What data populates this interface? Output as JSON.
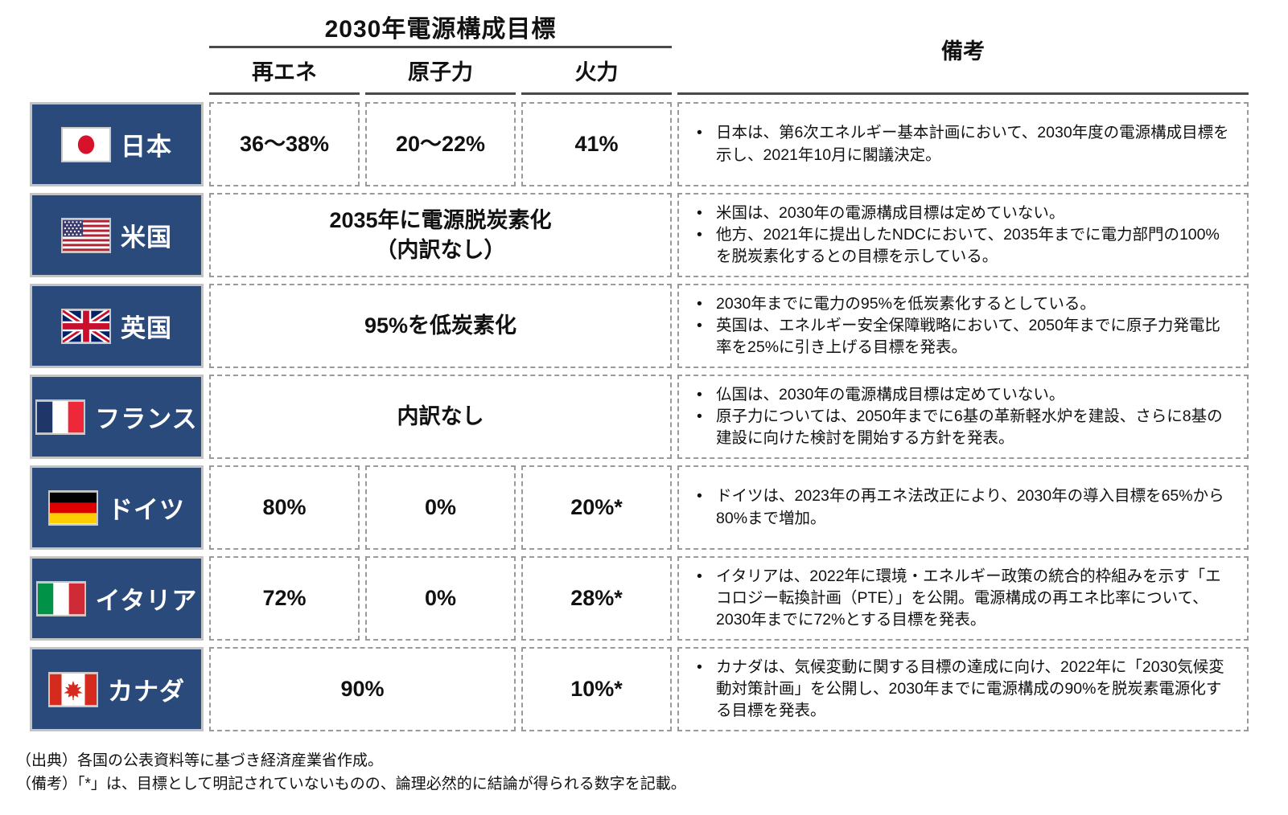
{
  "colors": {
    "country_box": "#2A4A7C",
    "country_box_border": "#C4C4C4",
    "cell_dashed_border": "#9A9A9A",
    "header_underline": "#4A4A4A",
    "country_text": "#FFFFFF",
    "body_text": "#111111"
  },
  "header": {
    "title": "2030年電源構成目標",
    "columns": [
      "再エネ",
      "原子力",
      "火力"
    ],
    "remarks": "備考"
  },
  "rows": [
    {
      "id": "japan",
      "country": "日本",
      "flag": "jp",
      "cells": [
        {
          "span": 1,
          "text": "36〜38%"
        },
        {
          "span": 1,
          "text": "20〜22%"
        },
        {
          "span": 1,
          "text": "41%"
        }
      ],
      "remarks": [
        "日本は、第6次エネルギー基本計画において、2030年度の電源構成目標を示し、2021年10月に閣議決定。"
      ]
    },
    {
      "id": "usa",
      "country": "米国",
      "flag": "us",
      "cells": [
        {
          "span": 3,
          "text": "2035年に電源脱炭素化\n（内訳なし）"
        }
      ],
      "remarks": [
        "米国は、2030年の電源構成目標は定めていない。",
        "他方、2021年に提出したNDCにおいて、2035年までに電力部門の100%を脱炭素化するとの目標を示している。"
      ]
    },
    {
      "id": "uk",
      "country": "英国",
      "flag": "uk",
      "cells": [
        {
          "span": 3,
          "text": "95%を低炭素化"
        }
      ],
      "remarks": [
        "2030年までに電力の95%を低炭素化するとしている。",
        "英国は、エネルギー安全保障戦略において、2050年までに原子力発電比率を25%に引き上げる目標を発表。"
      ]
    },
    {
      "id": "france",
      "country": "フランス",
      "flag": "fr",
      "cells": [
        {
          "span": 3,
          "text": "内訳なし"
        }
      ],
      "remarks": [
        "仏国は、2030年の電源構成目標は定めていない。",
        "原子力については、2050年までに6基の革新軽水炉を建設、さらに8基の建設に向けた検討を開始する方針を発表。"
      ]
    },
    {
      "id": "germany",
      "country": "ドイツ",
      "flag": "de",
      "cells": [
        {
          "span": 1,
          "text": "80%"
        },
        {
          "span": 1,
          "text": "0%"
        },
        {
          "span": 1,
          "text": "20%*"
        }
      ],
      "remarks": [
        "ドイツは、2023年の再エネ法改正により、2030年の導入目標を65%から80%まで増加。"
      ]
    },
    {
      "id": "italy",
      "country": "イタリア",
      "flag": "it",
      "cells": [
        {
          "span": 1,
          "text": "72%"
        },
        {
          "span": 1,
          "text": "0%"
        },
        {
          "span": 1,
          "text": "28%*"
        }
      ],
      "remarks": [
        "イタリアは、2022年に環境・エネルギー政策の統合的枠組みを示す「エコロジー転換計画（PTE）」を公開。電源構成の再エネ比率について、2030年までに72%とする目標を発表。"
      ]
    },
    {
      "id": "canada",
      "country": "カナダ",
      "flag": "ca",
      "cells": [
        {
          "span": 2,
          "text": "90%"
        },
        {
          "span": 1,
          "text": "10%*"
        }
      ],
      "remarks": [
        "カナダは、気候変動に関する目標の達成に向け、2022年に「2030気候変動対策計画」を公開し、2030年までに電源構成の90%を脱炭素電源化する目標を発表。"
      ]
    }
  ],
  "footer": {
    "source": "（出典）各国の公表資料等に基づき経済産業省作成。",
    "note": "（備考）「*」は、目標として明記されていないものの、論理必然的に結論が得られる数字を記載。"
  }
}
